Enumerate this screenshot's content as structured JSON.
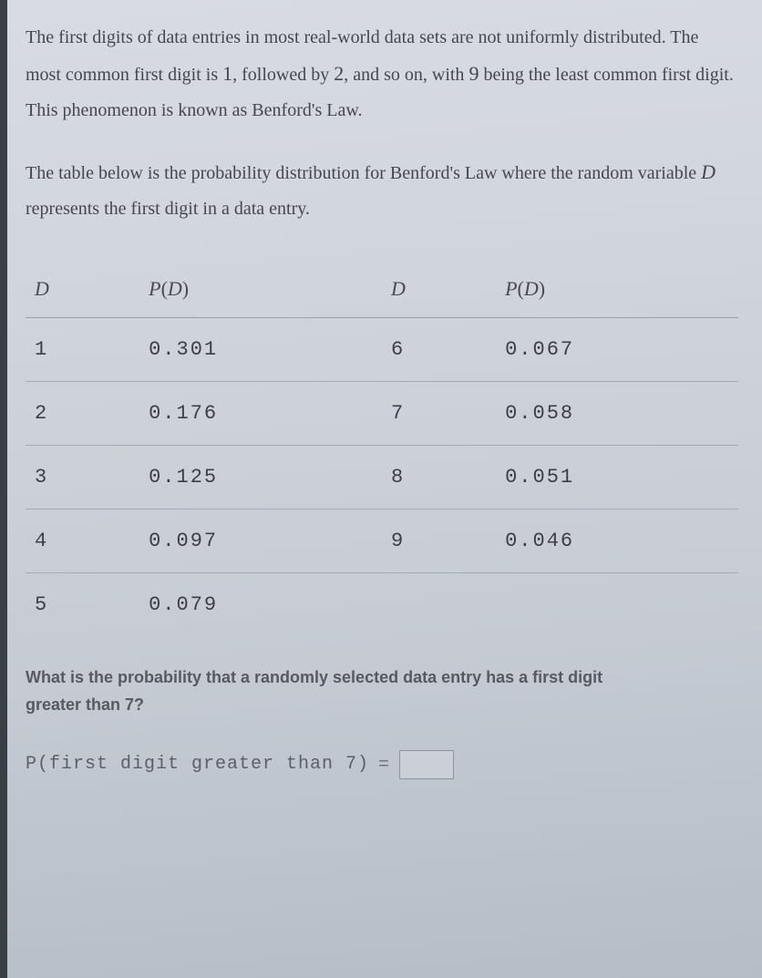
{
  "intro": {
    "p1_pre": "The first digits of data entries in most real-world data sets are not uniformly distributed. The most common first digit is ",
    "num1": "1",
    "p1_mid1": ", followed by ",
    "num2": "2",
    "p1_mid2": ", and so on, with ",
    "num9": "9",
    "p1_post": " being the least common first digit. This phenomenon is known as Benford's Law.",
    "p2_pre": "The table below is the probability distribution for Benford's Law where the random variable ",
    "varD": "D",
    "p2_post": " represents the first digit in a data entry."
  },
  "table": {
    "headers": {
      "d": "D",
      "pd_P": "P",
      "pd_open": "(",
      "pd_D": "D",
      "pd_close": ")"
    },
    "rows": [
      {
        "d1": "1",
        "p1": "0.301",
        "d2": "6",
        "p2": "0.067"
      },
      {
        "d1": "2",
        "p1": "0.176",
        "d2": "7",
        "p2": "0.058"
      },
      {
        "d1": "3",
        "p1": "0.125",
        "d2": "8",
        "p2": "0.051"
      },
      {
        "d1": "4",
        "p1": "0.097",
        "d2": "9",
        "p2": "0.046"
      },
      {
        "d1": "5",
        "p1": "0.079",
        "d2": "",
        "p2": ""
      }
    ]
  },
  "question": {
    "line1": "What is the probability that a randomly selected data entry has a first digit",
    "line2": "greater than 7?"
  },
  "answer": {
    "label": "P(first digit greater than 7)",
    "equals": "="
  },
  "colors": {
    "text": "#46474e",
    "border": "#9aa0aa",
    "bg_top": "#d8dce2",
    "bg_bot": "#b5bdc7"
  }
}
